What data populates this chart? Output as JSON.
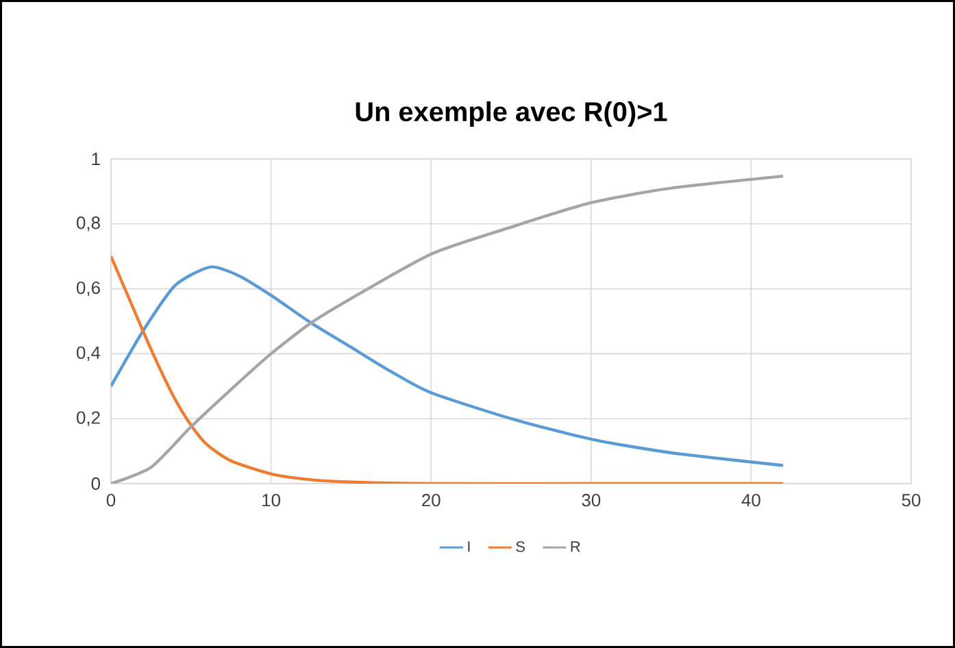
{
  "chart_data": {
    "type": "line",
    "title": "Un exemple avec R(0)>1",
    "series": [
      {
        "name": "I",
        "color": "#5b9bd5",
        "x": [
          0,
          2,
          4,
          6.2,
          8,
          10,
          12.5,
          15,
          17.5,
          20,
          25,
          30,
          35,
          42
        ],
        "values": [
          0.3,
          0.47,
          0.61,
          0.667,
          0.64,
          0.58,
          0.495,
          0.42,
          0.345,
          0.28,
          0.2,
          0.137,
          0.095,
          0.056
        ]
      },
      {
        "name": "S",
        "color": "#ed7d31",
        "x": [
          0,
          2,
          3,
          4,
          5,
          6,
          7.5,
          10,
          12.5,
          15,
          20,
          30,
          42
        ],
        "values": [
          0.7,
          0.47,
          0.36,
          0.26,
          0.18,
          0.12,
          0.07,
          0.03,
          0.012,
          0.005,
          0,
          0,
          0
        ]
      },
      {
        "name": "R",
        "color": "#a5a5a5",
        "x": [
          0,
          2.5,
          5,
          7.5,
          10,
          12.5,
          15,
          20,
          25,
          30,
          35,
          42
        ],
        "values": [
          0,
          0.05,
          0.175,
          0.29,
          0.4,
          0.495,
          0.57,
          0.707,
          0.79,
          0.865,
          0.91,
          0.947
        ]
      }
    ],
    "xlim": [
      0,
      50
    ],
    "xticks": [
      0,
      10,
      20,
      30,
      40,
      50
    ],
    "ylim": [
      0,
      1
    ],
    "yticks": [
      0,
      {
        "value": 0.2,
        "label": "0,2"
      },
      {
        "value": 0.4,
        "label": "0,4"
      },
      {
        "value": 0.6,
        "label": "0,6"
      },
      {
        "value": 0.8,
        "label": "0,8"
      },
      1
    ],
    "grid": true,
    "legend": "bottom",
    "marker": "none",
    "line_style": "solid"
  }
}
